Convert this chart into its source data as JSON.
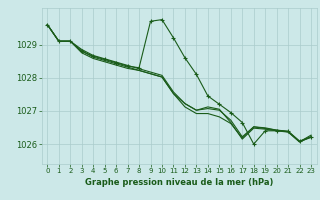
{
  "title": "Graphe pression niveau de la mer (hPa)",
  "background_color": "#cce8e8",
  "grid_color": "#aacccc",
  "line_color": "#1a5c1a",
  "marker_color": "#1a5c1a",
  "xlim": [
    -0.5,
    23.5
  ],
  "ylim": [
    1025.4,
    1030.1
  ],
  "yticks": [
    1026,
    1027,
    1028,
    1029
  ],
  "xticks": [
    0,
    1,
    2,
    3,
    4,
    5,
    6,
    7,
    8,
    9,
    10,
    11,
    12,
    13,
    14,
    15,
    16,
    17,
    18,
    19,
    20,
    21,
    22,
    23
  ],
  "series": [
    [
      1029.6,
      1029.1,
      1029.1,
      1028.8,
      1028.65,
      1028.55,
      1028.45,
      1028.35,
      1028.3,
      1029.7,
      1029.75,
      1029.2,
      1028.6,
      1028.1,
      1027.45,
      1027.2,
      1026.95,
      1026.65,
      1026.0,
      1026.4,
      1026.4,
      1026.38,
      1026.08,
      1026.2
    ],
    [
      1029.6,
      1029.1,
      1029.1,
      1028.75,
      1028.58,
      1028.48,
      1028.38,
      1028.28,
      1028.22,
      1028.12,
      1028.02,
      1027.52,
      1027.22,
      1027.02,
      1027.12,
      1027.05,
      1026.65,
      1026.15,
      1026.48,
      1026.45,
      1026.4,
      1026.36,
      1026.06,
      1026.22
    ],
    [
      1029.6,
      1029.1,
      1029.1,
      1028.8,
      1028.62,
      1028.52,
      1028.42,
      1028.32,
      1028.22,
      1028.12,
      1028.02,
      1027.52,
      1027.12,
      1026.92,
      1026.92,
      1026.82,
      1026.62,
      1026.18,
      1026.52,
      1026.47,
      1026.42,
      1026.37,
      1026.07,
      1026.27
    ],
    [
      1029.6,
      1029.1,
      1029.1,
      1028.85,
      1028.67,
      1028.57,
      1028.47,
      1028.37,
      1028.27,
      1028.17,
      1028.07,
      1027.57,
      1027.22,
      1027.02,
      1027.07,
      1027.02,
      1026.72,
      1026.22,
      1026.52,
      1026.49,
      1026.42,
      1026.39,
      1026.09,
      1026.22
    ]
  ]
}
